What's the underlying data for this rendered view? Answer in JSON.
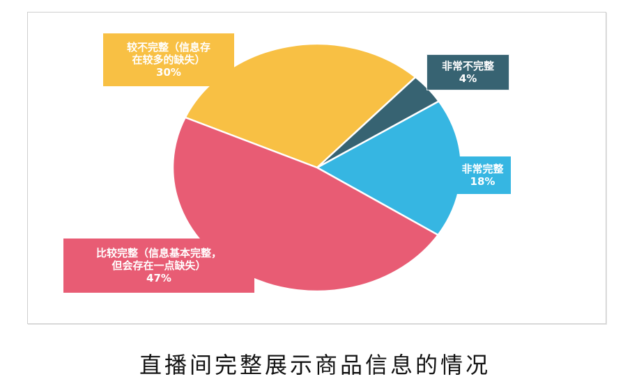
{
  "chart_data": {
    "type": "pie",
    "title": "直播间完整展示商品信息的情况",
    "categories": [
      "非常完整",
      "非常不完整",
      "较不完整（信息存在较多的缺失）",
      "比较完整（信息基本完整，但会存在一点缺失）"
    ],
    "values": [
      18,
      4,
      30,
      47
    ],
    "unit": "%",
    "colors": [
      "#36B6E2",
      "#376372",
      "#F8C044",
      "#E85C74"
    ],
    "legend": "none (data labels on slices)"
  },
  "labels": {
    "very_complete": {
      "line1": "非常完整",
      "pct": "18%"
    },
    "very_incomplete": {
      "line1": "非常不完整",
      "pct": "4%"
    },
    "fairly_incomplete": {
      "line1": "较不完整（信息存",
      "line2": "在较多的缺失）",
      "pct": "30%"
    },
    "fairly_complete": {
      "line1": "比较完整（信息基本完整，",
      "line2": "但会存在一点缺失）",
      "pct": "47%"
    }
  },
  "caption": "直播间完整展示商品信息的情况"
}
